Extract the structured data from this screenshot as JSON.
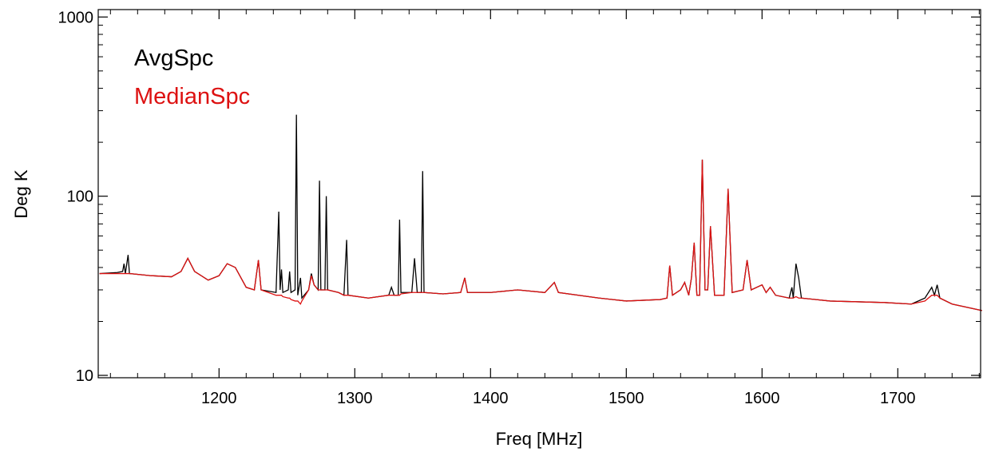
{
  "chart_data": {
    "type": "line",
    "xlabel": "Freq [MHz]",
    "ylabel": "Deg K",
    "log_y": true,
    "xlim": [
      1111,
      1761
    ],
    "ylim": [
      9.7,
      1100
    ],
    "xticks": [
      1200,
      1300,
      1400,
      1500,
      1600,
      1700
    ],
    "xminorticks": [
      1120,
      1140,
      1160,
      1180,
      1220,
      1240,
      1260,
      1280,
      1320,
      1340,
      1360,
      1380,
      1420,
      1440,
      1460,
      1480,
      1520,
      1540,
      1560,
      1580,
      1620,
      1640,
      1660,
      1680,
      1720,
      1740,
      1760
    ],
    "yticks": [
      10,
      100,
      1000
    ],
    "yminorticks": [
      20,
      30,
      40,
      50,
      60,
      70,
      80,
      90,
      200,
      300,
      400,
      500,
      600,
      700,
      800,
      900
    ],
    "legend": "upper left",
    "x": [
      1112,
      1125,
      1129,
      1130,
      1131,
      1133,
      1134,
      1150,
      1165,
      1172,
      1177,
      1182,
      1192,
      1200,
      1206,
      1212,
      1220,
      1226,
      1229,
      1231,
      1242,
      1244,
      1245,
      1246,
      1247,
      1251,
      1252,
      1253,
      1256,
      1257,
      1258,
      1260,
      1261,
      1266,
      1268,
      1270,
      1273,
      1274,
      1275,
      1278,
      1279,
      1280,
      1288,
      1292,
      1294,
      1295,
      1310,
      1325,
      1327,
      1329,
      1332,
      1333,
      1334,
      1342,
      1344,
      1346,
      1349,
      1350,
      1351,
      1365,
      1378,
      1381,
      1383,
      1400,
      1420,
      1440,
      1447,
      1450,
      1480,
      1500,
      1525,
      1530,
      1532,
      1534,
      1540,
      1543,
      1546,
      1548,
      1550,
      1552,
      1554,
      1556,
      1558,
      1560,
      1562,
      1565,
      1572,
      1575,
      1578,
      1586,
      1589,
      1592,
      1600,
      1603,
      1606,
      1610,
      1620,
      1622,
      1623,
      1625,
      1627,
      1629,
      1650,
      1690,
      1710,
      1720,
      1725,
      1727,
      1729,
      1731,
      1740,
      1762
    ],
    "series": [
      {
        "name": "AvgSpc",
        "color": "#000000",
        "values": [
          37,
          37.5,
          38,
          42,
          37,
          47,
          37,
          36,
          35.5,
          38,
          45,
          38,
          34,
          36,
          42,
          40,
          31,
          30,
          44,
          30,
          29,
          82,
          30,
          39,
          29,
          30,
          38,
          29,
          30,
          285,
          28,
          35,
          27,
          30,
          37,
          32,
          30,
          122,
          30,
          30,
          100,
          30,
          29,
          28,
          57,
          28,
          27,
          28,
          31,
          28,
          28,
          74,
          29,
          29,
          45,
          29,
          29,
          138,
          29,
          28.5,
          29,
          35,
          29,
          29,
          30,
          29,
          33,
          29,
          27,
          26,
          26.5,
          27,
          41,
          28,
          30,
          33,
          28,
          35,
          55,
          28,
          28,
          160,
          30,
          30,
          68,
          28,
          28,
          110,
          29,
          30,
          44,
          30,
          32,
          29,
          31,
          28,
          27,
          31,
          27,
          42,
          35,
          27,
          26,
          25.5,
          25,
          27,
          31,
          28,
          32,
          27,
          25,
          23
        ]
      },
      {
        "name": "MedianSpc",
        "color": "#dd1111",
        "values": [
          37,
          37,
          37,
          37,
          37,
          37,
          37,
          36,
          35.5,
          38,
          45,
          38,
          34,
          36,
          42,
          40,
          31,
          30,
          44,
          30,
          28,
          28,
          28,
          28,
          27.5,
          27,
          27,
          26.5,
          26,
          26,
          26,
          25,
          26,
          30,
          36,
          32,
          30,
          30,
          30,
          30,
          30,
          30,
          29,
          28,
          28,
          28,
          27,
          28,
          28,
          28,
          28,
          28,
          28.5,
          29,
          29,
          29,
          29,
          29,
          29,
          28.5,
          29,
          35,
          29,
          29,
          30,
          29,
          33,
          29,
          27,
          26,
          26.5,
          27,
          41,
          28,
          30,
          33,
          28,
          35,
          55,
          28,
          28,
          160,
          30,
          30,
          68,
          28,
          28,
          110,
          29,
          30,
          44,
          30,
          32,
          29,
          31,
          28,
          27,
          27,
          27,
          27.5,
          27,
          27,
          26,
          25.5,
          25,
          26,
          28,
          28,
          28,
          27,
          25,
          23
        ]
      }
    ]
  }
}
